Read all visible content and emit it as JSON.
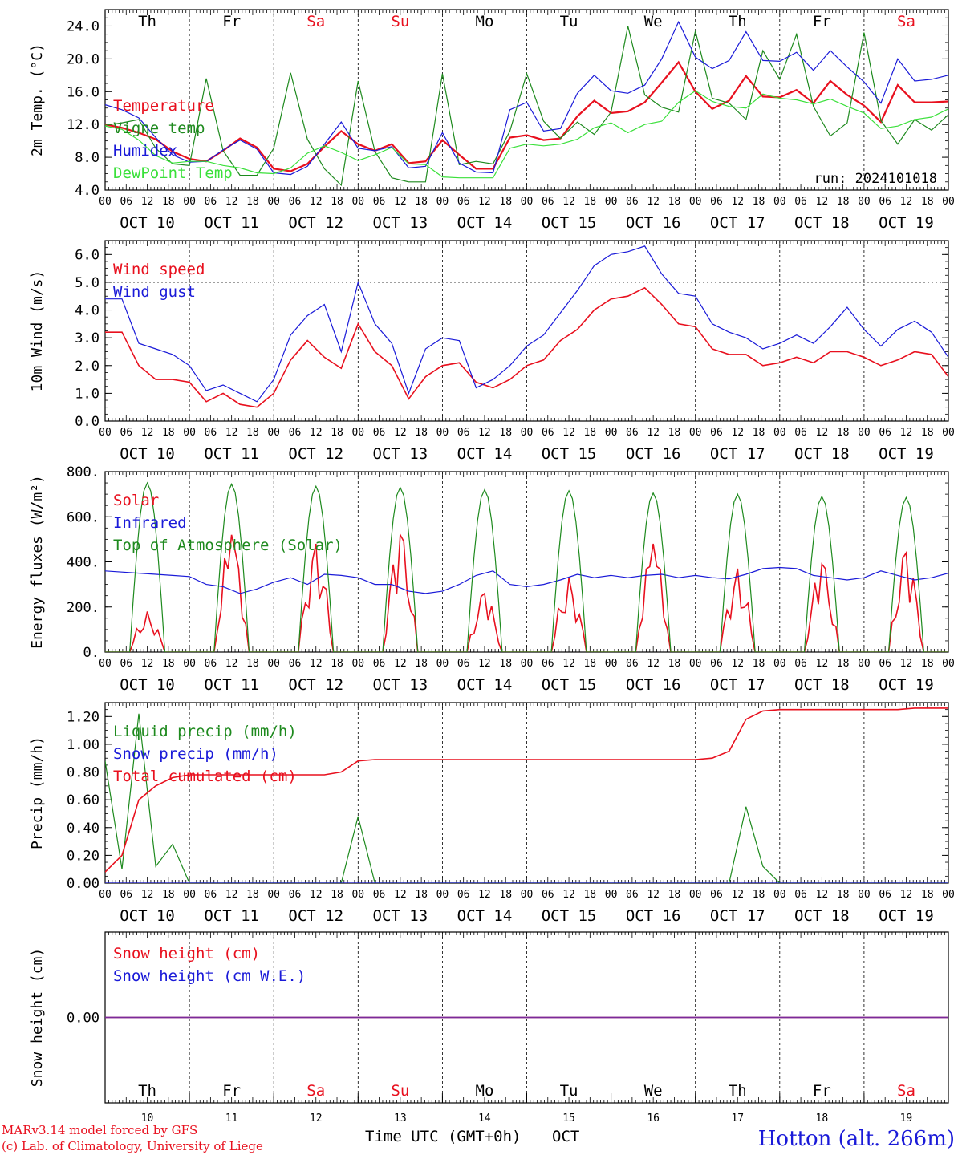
{
  "colors": {
    "red": "#e8101e",
    "green": "#1e8a1e",
    "blue": "#1a1ad8",
    "lightgreen": "#3ae03a",
    "purple": "#7a2a9a",
    "weekend": "#e8101e",
    "weekday": "#000000",
    "station": "#1a1ad8"
  },
  "x_axis": {
    "hour_labels": [
      "00",
      "06",
      "12",
      "18"
    ],
    "final_hour_label": "00",
    "date_labels": [
      "OCT 10",
      "OCT 11",
      "OCT 12",
      "OCT 13",
      "OCT 14",
      "OCT 15",
      "OCT 16",
      "OCT 17",
      "OCT 18",
      "OCT 19"
    ],
    "day_names": [
      "Th",
      "Fr",
      "Sa",
      "Su",
      "Mo",
      "Tu",
      "We",
      "Th",
      "Fr",
      "Sa"
    ],
    "weekend_flags": [
      false,
      false,
      true,
      true,
      false,
      false,
      false,
      false,
      false,
      true
    ],
    "day_numbers": [
      "10",
      "11",
      "12",
      "13",
      "14",
      "15",
      "16",
      "17",
      "18",
      "19"
    ],
    "axis_title": "Time UTC (GMT+0h)",
    "month": "OCT"
  },
  "footer": {
    "model": "MARv3.14 model forced by GFS",
    "credit": "(c) Lab. of Climatology, University of Liege",
    "station": "Hotton (alt. 266m)"
  },
  "chart_data": [
    {
      "id": "temp",
      "type": "line",
      "ylabel": "2m Temp. (°C)",
      "ylim": [
        4,
        26
      ],
      "yticks": [
        4,
        8,
        12,
        16,
        20,
        24
      ],
      "ytick_labels": [
        "4.0",
        "8.0",
        "12.0",
        "16.0",
        "20.0",
        "24.0"
      ],
      "annotation": "run: 2024101018",
      "x_hours_step": 6,
      "series": [
        {
          "name": "Temperature",
          "color": "red",
          "values": [
            12.0,
            11.6,
            11.0,
            10.2,
            8.7,
            7.8,
            7.5,
            8.8,
            10.3,
            9.2,
            6.6,
            6.3,
            7.2,
            9.3,
            11.2,
            9.6,
            8.8,
            9.6,
            7.3,
            7.5,
            10.1,
            8.3,
            6.6,
            6.6,
            10.4,
            10.7,
            10.1,
            10.3,
            13.0,
            14.9,
            13.4,
            13.6,
            14.7,
            17.1,
            19.6,
            16.0,
            13.9,
            14.9,
            17.9,
            15.4,
            15.3,
            16.2,
            14.6,
            17.3,
            15.6,
            14.3,
            12.3,
            16.8,
            14.7,
            14.7,
            14.8
          ]
        },
        {
          "name": "Vigne temp",
          "color": "green",
          "values": [
            11.9,
            12.2,
            12.6,
            9.1,
            7.2,
            7.0,
            17.6,
            8.8,
            5.8,
            5.8,
            9.1,
            18.3,
            10.2,
            6.6,
            4.6,
            17.3,
            8.7,
            5.5,
            5.0,
            5.0,
            18.2,
            7.1,
            7.5,
            7.2,
            11.2,
            18.2,
            12.4,
            10.3,
            12.3,
            10.8,
            13.5,
            24.0,
            15.6,
            14.1,
            13.5,
            23.4,
            15.2,
            14.6,
            12.6,
            21.0,
            17.5,
            23.0,
            14.2,
            10.6,
            12.2,
            23.2,
            12.5,
            9.6,
            12.6,
            11.3,
            13.2
          ]
        },
        {
          "name": "Humidex",
          "color": "blue",
          "values": [
            14.4,
            13.8,
            12.8,
            10.4,
            8.3,
            7.4,
            7.5,
            8.9,
            10.1,
            9.0,
            6.1,
            5.9,
            6.9,
            9.6,
            12.3,
            9.1,
            8.8,
            9.3,
            6.7,
            6.9,
            11.0,
            7.3,
            6.2,
            6.1,
            13.8,
            14.7,
            11.2,
            11.5,
            15.8,
            18.0,
            16.1,
            15.8,
            16.8,
            20.0,
            24.5,
            20.2,
            18.8,
            19.8,
            23.3,
            19.8,
            19.7,
            20.8,
            18.6,
            21.0,
            19.0,
            17.2,
            14.6,
            20.0,
            17.3,
            17.5,
            18.0
          ]
        },
        {
          "name": "DewPoint Temp",
          "color": "lightgreen",
          "values": [
            11.8,
            11.4,
            10.1,
            8.2,
            7.3,
            7.5,
            7.5,
            7.0,
            6.7,
            6.1,
            6.0,
            6.7,
            8.5,
            9.4,
            8.6,
            7.6,
            8.3,
            9.2,
            7.2,
            7.1,
            5.6,
            5.5,
            5.5,
            5.5,
            9.1,
            9.6,
            9.4,
            9.6,
            10.2,
            11.6,
            12.2,
            11.0,
            12.0,
            12.4,
            14.7,
            16.1,
            14.8,
            14.2,
            14.0,
            15.7,
            15.2,
            15.0,
            14.5,
            15.1,
            14.2,
            13.4,
            11.5,
            11.8,
            12.6,
            12.9,
            13.9
          ]
        }
      ]
    },
    {
      "id": "wind",
      "type": "line",
      "ylabel": "10m Wind (m/s)",
      "ylim": [
        0,
        6.5
      ],
      "yticks": [
        0,
        1,
        2,
        3,
        4,
        5,
        6
      ],
      "ytick_labels": [
        "0.0",
        "1.0",
        "2.0",
        "3.0",
        "4.0",
        "5.0",
        "6.0"
      ],
      "reference_line": 5.0,
      "x_hours_step": 6,
      "series": [
        {
          "name": "Wind speed",
          "color": "red",
          "values": [
            3.2,
            3.2,
            2.0,
            1.5,
            1.5,
            1.4,
            0.7,
            1.0,
            0.6,
            0.5,
            1.0,
            2.2,
            2.9,
            2.3,
            1.9,
            3.5,
            2.5,
            2.0,
            0.8,
            1.6,
            2.0,
            2.1,
            1.4,
            1.2,
            1.5,
            2.0,
            2.2,
            2.9,
            3.3,
            4.0,
            4.4,
            4.5,
            4.8,
            4.2,
            3.5,
            3.4,
            2.6,
            2.4,
            2.4,
            2.0,
            2.1,
            2.3,
            2.1,
            2.5,
            2.5,
            2.3,
            2.0,
            2.2,
            2.5,
            2.4,
            1.6
          ]
        },
        {
          "name": "Wind gust",
          "color": "blue",
          "values": [
            4.4,
            4.4,
            2.8,
            2.6,
            2.4,
            2.0,
            1.1,
            1.3,
            1.0,
            0.7,
            1.5,
            3.1,
            3.8,
            4.2,
            2.5,
            5.0,
            3.5,
            2.8,
            1.0,
            2.6,
            3.0,
            2.9,
            1.2,
            1.5,
            2.0,
            2.7,
            3.1,
            3.9,
            4.7,
            5.6,
            6.0,
            6.1,
            6.3,
            5.3,
            4.6,
            4.5,
            3.5,
            3.2,
            3.0,
            2.6,
            2.8,
            3.1,
            2.8,
            3.4,
            4.1,
            3.3,
            2.7,
            3.3,
            3.6,
            3.2,
            2.3
          ]
        }
      ]
    },
    {
      "id": "energy",
      "type": "line",
      "ylabel": "Energy fluxes (W/m²)",
      "ylim": [
        0,
        800
      ],
      "yticks": [
        0,
        200,
        400,
        600,
        800
      ],
      "ytick_labels": [
        "0.",
        "200.",
        "400.",
        "600.",
        "800."
      ],
      "x_hours_step": 1,
      "series": [
        {
          "name": "Solar",
          "color": "red",
          "peaks": [
            180,
            520,
            480,
            520,
            260,
            330,
            480,
            370,
            390,
            440
          ],
          "kind": "diurnal-noisy"
        },
        {
          "name": "Infrared",
          "color": "blue",
          "kind": "slow",
          "values": [
            360,
            355,
            350,
            345,
            340,
            335,
            300,
            290,
            260,
            280,
            310,
            330,
            300,
            345,
            340,
            330,
            300,
            300,
            270,
            260,
            270,
            300,
            340,
            360,
            300,
            290,
            300,
            320,
            345,
            330,
            340,
            330,
            340,
            345,
            330,
            340,
            330,
            325,
            345,
            370,
            375,
            370,
            340,
            330,
            320,
            330,
            360,
            340,
            320,
            330,
            350
          ]
        },
        {
          "name": "Top of Atmosphere (Solar)",
          "color": "green",
          "peaks": [
            750,
            745,
            735,
            730,
            720,
            715,
            705,
            700,
            690,
            685
          ],
          "kind": "diurnal"
        }
      ]
    },
    {
      "id": "precip",
      "type": "line",
      "ylabel": "Precip (mm/h)",
      "ylim": [
        0,
        1.3
      ],
      "yticks": [
        0,
        0.2,
        0.4,
        0.6,
        0.8,
        1.0,
        1.2
      ],
      "ytick_labels": [
        "0.00",
        "0.20",
        "0.40",
        "0.60",
        "0.80",
        "1.00",
        "1.20"
      ],
      "x_hours_step": 6,
      "series": [
        {
          "name": "Liquid precip (mm/h)",
          "color": "green",
          "values": [
            0.88,
            0.1,
            1.22,
            0.12,
            0.28,
            0.0,
            0.0,
            0.0,
            0.0,
            0.0,
            0.0,
            0.0,
            0.0,
            0.0,
            0.0,
            0.48,
            0.0,
            0.0,
            0.0,
            0.0,
            0.0,
            0.0,
            0.0,
            0.0,
            0.0,
            0.0,
            0.0,
            0.0,
            0.0,
            0.0,
            0.0,
            0.0,
            0.0,
            0.0,
            0.0,
            0.0,
            0.0,
            0.0,
            0.55,
            0.12,
            0.0,
            0.0,
            0.0,
            0.0,
            0.0,
            0.0,
            0.0,
            0.0,
            0.0,
            0.0,
            0.0
          ]
        },
        {
          "name": "Snow precip (mm/h)",
          "color": "blue",
          "values": [
            0,
            0,
            0,
            0,
            0,
            0,
            0,
            0,
            0,
            0,
            0,
            0,
            0,
            0,
            0,
            0,
            0,
            0,
            0,
            0,
            0,
            0,
            0,
            0,
            0,
            0,
            0,
            0,
            0,
            0,
            0,
            0,
            0,
            0,
            0,
            0,
            0,
            0,
            0,
            0,
            0,
            0,
            0,
            0,
            0,
            0,
            0,
            0,
            0,
            0,
            0
          ]
        },
        {
          "name": "Total cumulated (cm)",
          "color": "red",
          "values": [
            0.08,
            0.2,
            0.6,
            0.7,
            0.76,
            0.78,
            0.78,
            0.78,
            0.78,
            0.78,
            0.78,
            0.78,
            0.78,
            0.78,
            0.8,
            0.88,
            0.89,
            0.89,
            0.89,
            0.89,
            0.89,
            0.89,
            0.89,
            0.89,
            0.89,
            0.89,
            0.89,
            0.89,
            0.89,
            0.89,
            0.89,
            0.89,
            0.89,
            0.89,
            0.89,
            0.89,
            0.9,
            0.95,
            1.18,
            1.24,
            1.25,
            1.25,
            1.25,
            1.25,
            1.25,
            1.25,
            1.25,
            1.25,
            1.26,
            1.26,
            1.26
          ]
        }
      ]
    },
    {
      "id": "snow",
      "type": "line",
      "ylabel": "Snow height (cm)",
      "ylim": [
        -1,
        1
      ],
      "yticks": [
        0
      ],
      "ytick_labels": [
        "0.00"
      ],
      "x_hours_step": 6,
      "series": [
        {
          "name": "Snow height (cm)",
          "color": "red",
          "values": [
            0,
            0
          ]
        },
        {
          "name": "Snow height (cm W.E.)",
          "color": "blue",
          "values": [
            0,
            0
          ]
        }
      ]
    }
  ]
}
